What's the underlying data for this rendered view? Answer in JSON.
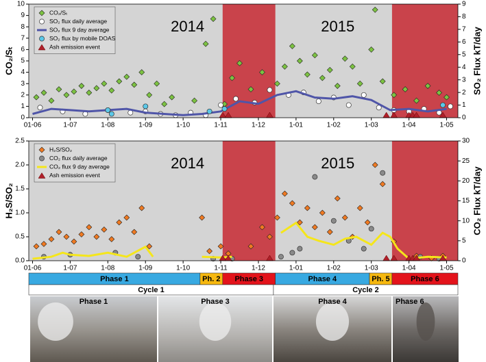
{
  "chart_data": [
    {
      "type": "scatter",
      "xlim": [
        -0.1,
        11.3
      ],
      "ylim": [
        0,
        10
      ],
      "yticks": [
        0,
        1,
        2,
        3,
        4,
        5,
        6,
        7,
        8,
        9,
        10
      ],
      "y2lim": [
        0,
        9
      ],
      "y2ticks": [
        0,
        1,
        2,
        3,
        4,
        5,
        6,
        7,
        8,
        9
      ],
      "ylabel": "CO₂/Sₜ",
      "y2label": "SO₂ Flux kT/day",
      "background": "#d4d4d4",
      "legend": "upper left",
      "periods": [
        {
          "start": 5.05,
          "end": 6.45,
          "color": "#c9434b"
        },
        {
          "start": 9.55,
          "end": 11.3,
          "color": "#c9434b"
        }
      ],
      "annotations": [
        "2014",
        "2015"
      ],
      "xticks": [
        {
          "value": 0,
          "label": "01-06"
        },
        {
          "value": 1,
          "label": "1-07"
        },
        {
          "value": 2,
          "label": "1-08"
        },
        {
          "value": 3,
          "label": "1-09"
        },
        {
          "value": 4,
          "label": "1-10"
        },
        {
          "value": 5,
          "label": "1-11"
        },
        {
          "value": 6,
          "label": "1-12"
        },
        {
          "value": 7,
          "label": "1-01"
        },
        {
          "value": 8,
          "label": "1-02"
        },
        {
          "value": 9,
          "label": "1-03"
        },
        {
          "value": 10,
          "label": "1-04"
        },
        {
          "value": 11,
          "label": "1-05"
        }
      ],
      "series": [
        {
          "name": "CO₂/Sₜ",
          "color": "#7cc242",
          "kind": "scatter",
          "marker": "diamond",
          "axis": "y",
          "x": [
            0.1,
            0.3,
            0.5,
            0.7,
            0.9,
            1.1,
            1.3,
            1.5,
            1.7,
            1.9,
            2.1,
            2.3,
            2.5,
            2.7,
            2.9,
            3.1,
            3.3,
            3.5,
            3.7,
            4.3,
            4.6,
            4.8,
            5.1,
            5.3,
            5.5,
            5.8,
            6.1,
            6.5,
            6.7,
            6.9,
            7.1,
            7.3,
            7.5,
            7.7,
            7.9,
            8.1,
            8.3,
            8.5,
            8.7,
            9.0,
            9.1,
            9.3,
            9.6,
            9.9,
            10.2,
            10.5,
            10.8,
            11.0
          ],
          "values": [
            1.8,
            2.2,
            1.5,
            2.5,
            2.0,
            2.3,
            2.8,
            2.2,
            2.6,
            3.0,
            2.4,
            3.2,
            3.6,
            2.9,
            4.0,
            2.0,
            3.0,
            1.2,
            1.8,
            1.5,
            6.5,
            8.7,
            1.2,
            3.5,
            4.8,
            2.5,
            4.0,
            3.0,
            4.5,
            6.3,
            5.0,
            3.8,
            5.5,
            3.5,
            4.2,
            2.8,
            5.2,
            4.5,
            3.0,
            6.0,
            9.5,
            3.2,
            2.0,
            2.5,
            1.5,
            2.8,
            2.2,
            1.8
          ]
        },
        {
          "name": "SO₂ flux daily average",
          "color": "#ffffff",
          "kind": "scatter",
          "marker": "circle",
          "axis": "y2",
          "x": [
            0.2,
            0.8,
            1.4,
            2.0,
            2.6,
            3.0,
            3.4,
            3.8,
            4.2,
            4.6,
            5.0,
            5.4,
            5.9,
            6.3,
            6.8,
            7.2,
            7.6,
            8.0,
            8.4,
            8.8,
            9.2,
            9.6,
            10.0,
            10.4,
            10.8,
            11.1
          ],
          "values": [
            0.8,
            0.5,
            0.3,
            0.6,
            0.4,
            0.5,
            0.3,
            0.2,
            0.4,
            0.2,
            1.0,
            1.5,
            1.2,
            2.2,
            1.8,
            2.0,
            1.3,
            1.6,
            1.0,
            1.8,
            0.8,
            0.6,
            0.5,
            0.7,
            0.4,
            0.9
          ]
        },
        {
          "name": "SO₂ flux 9 day average",
          "color": "#4f55a8",
          "kind": "line",
          "axis": "y2",
          "x": [
            0,
            0.5,
            1,
            1.5,
            2,
            2.5,
            3,
            3.5,
            4,
            4.5,
            5,
            5.5,
            6,
            6.5,
            7,
            7.5,
            8,
            8.5,
            9,
            9.5,
            10,
            10.5,
            11
          ],
          "values": [
            0.3,
            0.7,
            0.6,
            0.5,
            0.6,
            0.7,
            0.4,
            0.3,
            0.2,
            0.3,
            0.5,
            1.3,
            1.1,
            1.8,
            2.1,
            1.6,
            1.5,
            1.7,
            1.4,
            0.6,
            0.7,
            0.5,
            0.7
          ]
        },
        {
          "name": "SO₂ flux by mobile DOAS",
          "color": "#5bc8e8",
          "kind": "scatter",
          "marker": "circle",
          "axis": "y2",
          "x": [
            2.0,
            2.1,
            3.0,
            4.7,
            5.1,
            10.9
          ],
          "values": [
            0.6,
            0.3,
            0.9,
            0.5,
            0.7,
            1.0
          ]
        },
        {
          "name": "Ash emission event",
          "color": "#b0202a",
          "kind": "scatter",
          "marker": "triangle",
          "axis": "y",
          "x": [
            5.05,
            5.2,
            6.3,
            9.4,
            9.6,
            10.0,
            10.1,
            10.2,
            10.9
          ],
          "values": [
            0,
            0,
            0,
            0,
            0,
            0,
            0,
            0,
            0
          ]
        }
      ]
    },
    {
      "type": "scatter",
      "xlim": [
        -0.1,
        11.3
      ],
      "ylim": [
        0,
        2.5
      ],
      "yticks": [
        {
          "value": 0,
          "label": "0.0"
        },
        {
          "value": 0.5,
          "label": "0.5"
        },
        {
          "value": 1,
          "label": "1.0"
        },
        {
          "value": 1.5,
          "label": "1.5"
        },
        {
          "value": 2,
          "label": "2.0"
        },
        {
          "value": 2.5,
          "label": "2.5"
        }
      ],
      "y2lim": [
        0,
        30
      ],
      "y2ticks": [
        0,
        5,
        10,
        15,
        20,
        25,
        30
      ],
      "ylabel": "H₂S/SO₂",
      "y2label": "CO₂ Flux kT/day",
      "background": "#d4d4d4",
      "legend": "upper left",
      "periods": [
        {
          "start": 5.05,
          "end": 6.45,
          "color": "#c9434b"
        },
        {
          "start": 9.55,
          "end": 11.3,
          "color": "#c9434b"
        }
      ],
      "annotations": [
        "2014",
        "2015"
      ],
      "xticks": [
        {
          "value": 0,
          "label": "01-06"
        },
        {
          "value": 1,
          "label": "1-07"
        },
        {
          "value": 2,
          "label": "1-08"
        },
        {
          "value": 3,
          "label": "1-09"
        },
        {
          "value": 4,
          "label": "1-10"
        },
        {
          "value": 5,
          "label": "1-11"
        },
        {
          "value": 6,
          "label": "1-12"
        },
        {
          "value": 7,
          "label": "1-01"
        },
        {
          "value": 8,
          "label": "1-02"
        },
        {
          "value": 9,
          "label": "1-03"
        },
        {
          "value": 10,
          "label": "1-04"
        },
        {
          "value": 11,
          "label": "1-05"
        }
      ],
      "series": [
        {
          "name": "H₂S/SO₂",
          "color": "#f07a22",
          "kind": "scatter",
          "marker": "diamond",
          "axis": "y",
          "x": [
            0.1,
            0.3,
            0.5,
            0.7,
            0.9,
            1.1,
            1.3,
            1.5,
            1.7,
            1.9,
            2.1,
            2.3,
            2.5,
            2.7,
            2.9,
            3.1,
            4.5,
            4.7,
            5.0,
            5.2,
            5.8,
            6.1,
            6.3,
            6.5,
            6.7,
            6.9,
            7.1,
            7.3,
            7.5,
            7.7,
            7.9,
            8.1,
            8.3,
            8.5,
            8.7,
            8.9,
            9.1,
            9.3,
            9.6,
            10.2,
            10.6,
            10.9
          ],
          "values": [
            0.3,
            0.35,
            0.45,
            0.6,
            0.5,
            0.4,
            0.55,
            0.7,
            0.5,
            0.65,
            0.45,
            0.8,
            0.9,
            0.6,
            1.1,
            0.3,
            0.9,
            0.2,
            0.3,
            0.15,
            0.3,
            0.7,
            0.5,
            0.9,
            1.4,
            1.2,
            0.8,
            1.1,
            0.7,
            1.0,
            0.6,
            1.3,
            0.9,
            0.5,
            1.1,
            0.8,
            2.0,
            1.6,
            0.4,
            0.1,
            0.05,
            0.1
          ]
        },
        {
          "name": "CO₂ flux daily average",
          "color": "#8a8a8a",
          "kind": "scatter",
          "marker": "circle",
          "axis": "y2",
          "x": [
            0.3,
            1.0,
            2.2,
            2.8,
            4.8,
            5.3,
            6.6,
            6.9,
            7.1,
            7.5,
            8.0,
            8.4,
            8.8,
            9.0,
            9.3,
            10.3,
            10.8
          ],
          "values": [
            1,
            1.5,
            2,
            1,
            0.5,
            0.5,
            1,
            2,
            3,
            21,
            10,
            5,
            3,
            8,
            22,
            1,
            0.5
          ]
        },
        {
          "name": "CO₂ flux 9 day average",
          "color": "#f5e61a",
          "kind": "line",
          "axis": "y2",
          "x": [
            0,
            0.5,
            0.8,
            1.0,
            1.5,
            2.0,
            2.5,
            3.0,
            3.2,
            3.8,
            4.5,
            5.0,
            5.3,
            6.0,
            6.6,
            7.0,
            7.3,
            7.6,
            8.0,
            8.3,
            8.6,
            9.0,
            9.3,
            9.5,
            9.7,
            10.0,
            10.5,
            11.0
          ],
          "values": [
            0.5,
            1.0,
            2.0,
            1.5,
            1.2,
            2.0,
            1.0,
            3.5,
            1.0,
            null,
            1.0,
            0.8,
            1.0,
            null,
            7.0,
            9.5,
            6.0,
            5.0,
            4.0,
            5.5,
            6.0,
            4.0,
            7.0,
            6.0,
            3.0,
            0.5,
            1.0,
            0.8
          ]
        },
        {
          "name": "Ash emission event",
          "color": "#b0202a",
          "kind": "scatter",
          "marker": "triangle",
          "axis": "y",
          "x": [
            5.05,
            5.2,
            6.3,
            9.4,
            9.6,
            10.0,
            10.1,
            10.2,
            10.9
          ],
          "values": [
            0,
            0,
            0,
            0,
            0,
            0,
            0,
            0,
            0
          ]
        }
      ]
    }
  ],
  "phase_bar": {
    "phases": [
      {
        "label": "Phase 1",
        "start": -0.1,
        "end": 4.45,
        "color": "#38a9e1"
      },
      {
        "label": "Ph. 2",
        "start": 4.45,
        "end": 5.05,
        "color": "#f6b80f"
      },
      {
        "label": "Phase 3",
        "start": 5.05,
        "end": 6.45,
        "color": "#e3131b"
      },
      {
        "label": "Phase 4",
        "start": 6.45,
        "end": 8.95,
        "color": "#38a9e1"
      },
      {
        "label": "Ph. 5",
        "start": 8.95,
        "end": 9.55,
        "color": "#f6b80f"
      },
      {
        "label": "Phase 6",
        "start": 9.55,
        "end": 11.3,
        "color": "#e3131b"
      }
    ],
    "cycles": [
      {
        "label": "Cycle 1",
        "start": -0.1,
        "end": 6.4
      },
      {
        "label": "Cycle 2",
        "start": 6.4,
        "end": 11.3
      }
    ]
  },
  "photos": [
    "Phase 1",
    "Phase 3",
    "Phase 4",
    "Phase 6"
  ]
}
